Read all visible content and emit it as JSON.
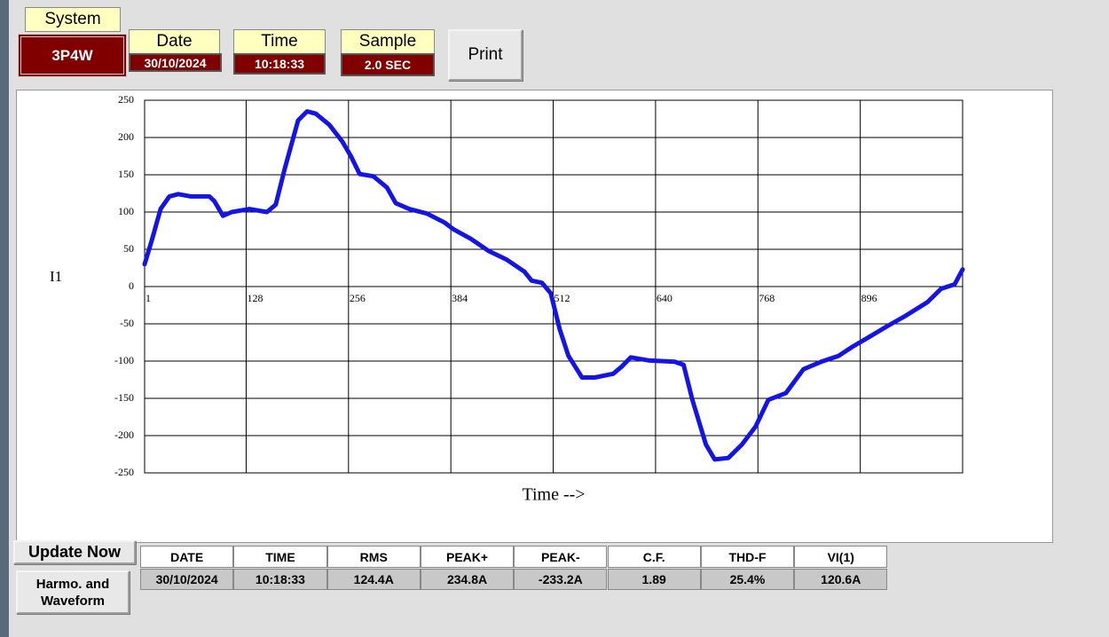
{
  "header": {
    "system": {
      "label": "System",
      "value": "3P4W"
    },
    "date": {
      "label": "Date",
      "value": "30/10/2024"
    },
    "time": {
      "label": "Time",
      "value": "10:18:33"
    },
    "sample": {
      "label": "Sample",
      "value": "2.0 SEC"
    },
    "print": "Print"
  },
  "chart_data": {
    "type": "line",
    "ylabel": "I1",
    "xlabel": "Time -->",
    "color": "#1414e6",
    "x": [
      1,
      10,
      21,
      32,
      43,
      59,
      82,
      88,
      99,
      110,
      132,
      154,
      165,
      176,
      193,
      204,
      215,
      232,
      248,
      259,
      270,
      287,
      304,
      315,
      332,
      354,
      376,
      387,
      409,
      431,
      454,
      476,
      485,
      498,
      509,
      520,
      531,
      548,
      564,
      587,
      598,
      609,
      631,
      664,
      675,
      686,
      703,
      714,
      731,
      748,
      765,
      781,
      803,
      825,
      847,
      869,
      886,
      908,
      930,
      953,
      980,
      997,
      1014,
      1024
    ],
    "values": [
      30,
      62,
      104,
      121,
      124,
      121,
      121,
      115,
      95,
      100,
      104,
      100,
      110,
      157,
      223,
      235,
      232,
      217,
      195,
      175,
      151,
      148,
      133,
      112,
      104,
      98,
      86,
      77,
      64,
      48,
      36,
      20,
      8,
      5,
      -9,
      -57,
      -93,
      -122,
      -122,
      -117,
      -107,
      -95,
      -99,
      -101,
      -105,
      -152,
      -212,
      -232,
      -230,
      -212,
      -188,
      -152,
      -143,
      -111,
      -101,
      -93,
      -81,
      -67,
      -53,
      -39,
      -21,
      -3,
      3,
      23
    ],
    "xlim": [
      1,
      1024
    ],
    "xticks": [
      1,
      128,
      256,
      384,
      512,
      640,
      768,
      896
    ],
    "ylim": [
      -250,
      250
    ],
    "yticks": [
      -250,
      -200,
      -150,
      -100,
      -50,
      0,
      50,
      100,
      150,
      200,
      250
    ],
    "grid": true
  },
  "buttons": {
    "update": "Update Now",
    "harmo": "Harmo. and Waveform"
  },
  "table": {
    "columns": [
      "DATE",
      "TIME",
      "RMS",
      "PEAK+",
      "PEAK-",
      "C.F.",
      "THD-F",
      "VI(1)"
    ],
    "rows": [
      [
        "30/10/2024",
        "10:18:33",
        "124.4A",
        "234.8A",
        "-233.2A",
        "1.89",
        "25.4%",
        "120.6A"
      ]
    ]
  }
}
